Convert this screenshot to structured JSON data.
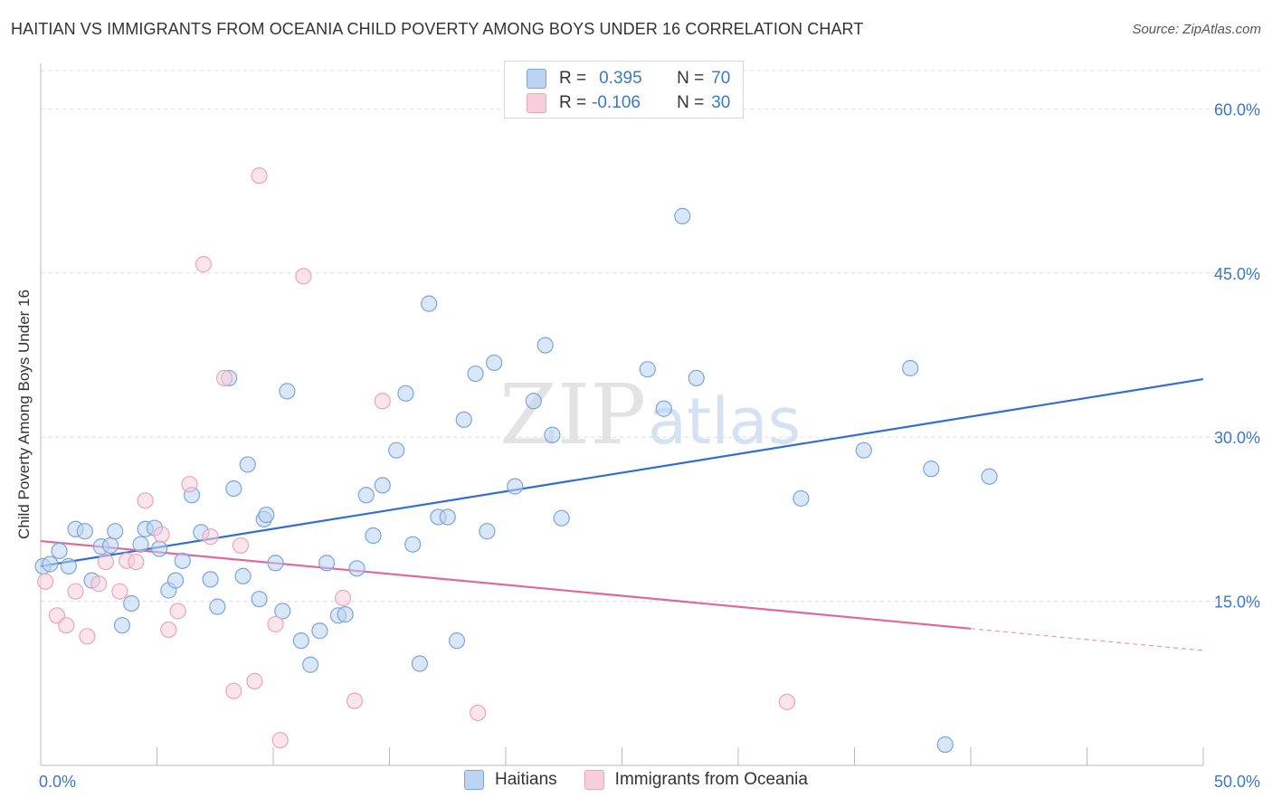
{
  "title": "HAITIAN VS IMMIGRANTS FROM OCEANIA CHILD POVERTY AMONG BOYS UNDER 16 CORRELATION CHART",
  "source": "Source: ZipAtlas.com",
  "watermark": {
    "zip": "ZIP",
    "atlas": "atlas"
  },
  "legend": {
    "r_label": "R =",
    "n_label": "N =",
    "series": [
      {
        "r": "0.395",
        "n": "70"
      },
      {
        "r": "-0.106",
        "n": "30"
      }
    ]
  },
  "chart_data": {
    "type": "scatter",
    "title": "HAITIAN VS IMMIGRANTS FROM OCEANIA CHILD POVERTY AMONG BOYS UNDER 16 CORRELATION CHART",
    "xlabel": "",
    "ylabel": "Child Poverty Among Boys Under 16",
    "xlim": [
      0,
      50
    ],
    "ylim": [
      0,
      64
    ],
    "x_tick_labels": [
      "0.0%",
      "50.0%"
    ],
    "y_ticks": [
      15,
      30,
      45,
      60
    ],
    "y_tick_labels": [
      "15.0%",
      "30.0%",
      "45.0%",
      "60.0%"
    ],
    "grid": true,
    "series": [
      {
        "name": "Haitians",
        "color": "#7aa6de",
        "fill": "#bcd4f2",
        "trend": {
          "x": [
            0,
            50
          ],
          "y": [
            18.2,
            35.3
          ],
          "color": "#2f6fd0"
        },
        "points": [
          [
            0.1,
            18.2
          ],
          [
            0.4,
            18.4
          ],
          [
            0.8,
            19.6
          ],
          [
            1.2,
            18.2
          ],
          [
            1.5,
            21.6
          ],
          [
            1.9,
            21.4
          ],
          [
            2.2,
            16.9
          ],
          [
            2.6,
            20.0
          ],
          [
            3.0,
            20.1
          ],
          [
            3.2,
            21.4
          ],
          [
            3.5,
            12.8
          ],
          [
            3.9,
            14.8
          ],
          [
            4.3,
            20.2
          ],
          [
            4.5,
            21.6
          ],
          [
            4.9,
            21.7
          ],
          [
            5.1,
            19.8
          ],
          [
            5.5,
            16.0
          ],
          [
            5.8,
            16.9
          ],
          [
            6.1,
            18.7
          ],
          [
            6.5,
            24.7
          ],
          [
            6.9,
            21.3
          ],
          [
            7.3,
            17.0
          ],
          [
            7.6,
            14.5
          ],
          [
            8.1,
            35.4
          ],
          [
            8.3,
            25.3
          ],
          [
            8.7,
            17.3
          ],
          [
            8.9,
            27.5
          ],
          [
            9.4,
            15.2
          ],
          [
            9.6,
            22.5
          ],
          [
            9.7,
            22.9
          ],
          [
            10.1,
            18.5
          ],
          [
            10.4,
            14.1
          ],
          [
            10.6,
            34.2
          ],
          [
            11.2,
            11.4
          ],
          [
            11.6,
            9.2
          ],
          [
            12.0,
            12.3
          ],
          [
            12.3,
            18.5
          ],
          [
            12.8,
            13.7
          ],
          [
            13.1,
            13.8
          ],
          [
            13.6,
            18.0
          ],
          [
            14.0,
            24.7
          ],
          [
            14.3,
            21.0
          ],
          [
            14.7,
            25.6
          ],
          [
            15.3,
            28.8
          ],
          [
            15.7,
            34.0
          ],
          [
            16.0,
            20.2
          ],
          [
            16.3,
            9.3
          ],
          [
            16.7,
            42.2
          ],
          [
            17.1,
            22.7
          ],
          [
            17.5,
            22.7
          ],
          [
            17.9,
            11.4
          ],
          [
            18.2,
            31.6
          ],
          [
            18.7,
            35.8
          ],
          [
            19.2,
            21.4
          ],
          [
            19.5,
            36.8
          ],
          [
            20.4,
            25.5
          ],
          [
            21.2,
            33.3
          ],
          [
            21.7,
            38.4
          ],
          [
            22.0,
            30.2
          ],
          [
            22.4,
            22.6
          ],
          [
            26.1,
            36.2
          ],
          [
            26.8,
            32.6
          ],
          [
            27.6,
            50.2
          ],
          [
            28.2,
            35.4
          ],
          [
            32.7,
            24.4
          ],
          [
            35.4,
            28.8
          ],
          [
            37.4,
            36.3
          ],
          [
            38.3,
            27.1
          ],
          [
            38.9,
            1.9
          ],
          [
            40.8,
            26.4
          ]
        ]
      },
      {
        "name": "Immigrants from Oceania",
        "color": "#eda3bc",
        "fill": "#f7cfdc",
        "trend": {
          "x": [
            0,
            40
          ],
          "y": [
            20.5,
            12.5
          ],
          "dashed_to": [
            50,
            10.5
          ],
          "color": "#e2679a"
        },
        "points": [
          [
            0.2,
            16.8
          ],
          [
            0.7,
            13.7
          ],
          [
            1.1,
            12.8
          ],
          [
            1.5,
            15.9
          ],
          [
            2.0,
            11.8
          ],
          [
            2.5,
            16.6
          ],
          [
            2.8,
            18.6
          ],
          [
            3.4,
            15.9
          ],
          [
            3.7,
            18.7
          ],
          [
            4.1,
            18.6
          ],
          [
            4.5,
            24.2
          ],
          [
            5.2,
            21.1
          ],
          [
            5.5,
            12.4
          ],
          [
            5.9,
            14.1
          ],
          [
            6.4,
            25.7
          ],
          [
            7.0,
            45.8
          ],
          [
            7.3,
            20.9
          ],
          [
            7.9,
            35.4
          ],
          [
            8.3,
            6.8
          ],
          [
            8.6,
            20.1
          ],
          [
            9.2,
            7.7
          ],
          [
            9.4,
            53.9
          ],
          [
            10.1,
            12.9
          ],
          [
            10.3,
            2.3
          ],
          [
            11.3,
            44.7
          ],
          [
            13.0,
            15.3
          ],
          [
            13.5,
            5.9
          ],
          [
            14.7,
            33.3
          ],
          [
            18.8,
            4.8
          ],
          [
            32.1,
            5.8
          ]
        ]
      }
    ]
  },
  "bottom_legend": {
    "series1": "Haitians",
    "series2": "Immigrants from Oceania"
  }
}
